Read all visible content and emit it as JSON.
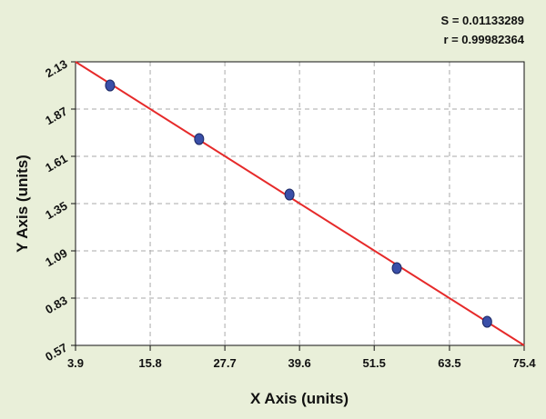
{
  "chart_data": {
    "type": "scatter",
    "annotations": [
      "S = 0.01133289",
      "r = 0.99982364"
    ],
    "xlabel": "X Axis (units)",
    "ylabel": "Y Axis (units)",
    "series": [
      {
        "x": [
          9.4,
          23.6,
          38.0,
          55.1,
          69.5
        ],
        "values": [
          2.0,
          1.705,
          1.4,
          0.995,
          0.7
        ],
        "color": "#3a4fa8"
      }
    ],
    "fit_line": {
      "x": [
        3.9,
        75.4
      ],
      "values": [
        2.13,
        0.57
      ],
      "color": "#e62a2a"
    },
    "xlim": [
      3.9,
      75.4
    ],
    "xticks": [
      3.9,
      15.8,
      27.7,
      39.6,
      51.5,
      63.5,
      75.4
    ],
    "ylim": [
      0.57,
      2.13
    ],
    "yticks": [
      0.57,
      0.83,
      1.09,
      1.35,
      1.61,
      1.87,
      2.13
    ],
    "grid": true
  }
}
